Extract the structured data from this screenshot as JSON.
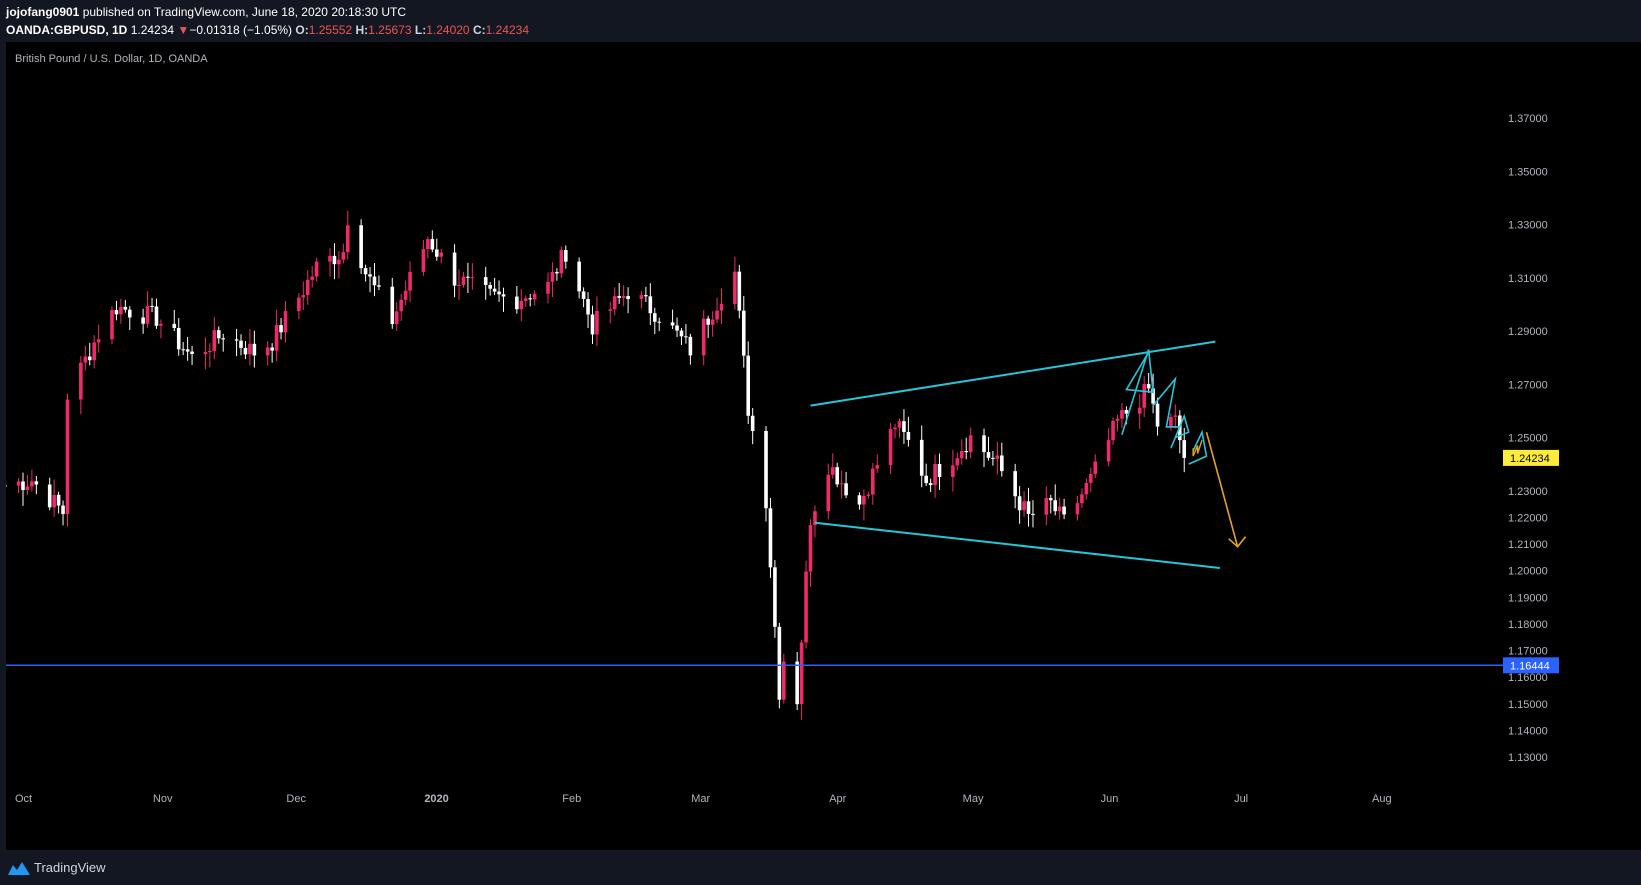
{
  "header": {
    "author": "jojofang0901",
    "published_text": " published on TradingView.com, June 18, 2020 20:18:30 UTC",
    "symbol": "OANDA:GBPUSD, 1D",
    "last": "1.24234",
    "change_arrow": "▼",
    "change": "−0.01318 (−1.05%)",
    "o_label": "O:",
    "o_value": "1.25552",
    "h_label": "H:",
    "h_value": "1.25673",
    "l_label": "L:",
    "l_value": "1.24020",
    "c_label": "C:",
    "c_value": "1.24234"
  },
  "footer": {
    "brand": "TradingView",
    "logo_icon": "tradingview-logo-icon"
  },
  "colors": {
    "up": "#ef2a6a",
    "down": "#ffffff",
    "trendline": "#26c6da",
    "hline": "#2962ff",
    "arrow": "#e6a323",
    "price_badge": "#ffeb3b"
  },
  "chart_data": {
    "type": "candlestick",
    "title": "British Pound / U.S. Dollar, 1D, OANDA",
    "price_axis": {
      "min": 1.125,
      "max": 1.38,
      "ticks": [
        "1.37000",
        "1.35000",
        "1.33000",
        "1.31000",
        "1.29000",
        "1.27000",
        "1.25000",
        "1.23000",
        "1.22000",
        "1.21000",
        "1.20000",
        "1.19000",
        "1.18000",
        "1.17000",
        "1.16000",
        "1.15000",
        "1.14000",
        "1.13000"
      ]
    },
    "time_axis": {
      "labels": [
        {
          "date": "2019-10-01",
          "label": "Oct",
          "bold": false
        },
        {
          "date": "2019-11-01",
          "label": "Nov",
          "bold": false
        },
        {
          "date": "2019-12-01",
          "label": "Dec",
          "bold": false
        },
        {
          "date": "2020-01-01",
          "label": "2020",
          "bold": true
        },
        {
          "date": "2020-02-01",
          "label": "Feb",
          "bold": false
        },
        {
          "date": "2020-03-01",
          "label": "Mar",
          "bold": false
        },
        {
          "date": "2020-04-01",
          "label": "Apr",
          "bold": false
        },
        {
          "date": "2020-05-01",
          "label": "May",
          "bold": false
        },
        {
          "date": "2020-06-01",
          "label": "Jun",
          "bold": false
        },
        {
          "date": "2020-07-01",
          "label": "Jul",
          "bold": false
        },
        {
          "date": "2020-08-01",
          "label": "Aug",
          "bold": false
        }
      ]
    },
    "current_price": {
      "value": 1.24234,
      "label": "1.24234"
    },
    "horizontal_line": {
      "value": 1.16444,
      "label": "1.16444"
    },
    "waypoints": [
      [
        "2019-09-27",
        1.232
      ],
      [
        "2019-10-03",
        1.234
      ],
      [
        "2019-10-10",
        1.222
      ],
      [
        "2019-10-11",
        1.266
      ],
      [
        "2019-10-18",
        1.289
      ],
      [
        "2019-10-22",
        1.299
      ],
      [
        "2019-10-31",
        1.295
      ],
      [
        "2019-11-08",
        1.28
      ],
      [
        "2019-11-15",
        1.289
      ],
      [
        "2019-11-22",
        1.282
      ],
      [
        "2019-11-26",
        1.286
      ],
      [
        "2019-12-06",
        1.314
      ],
      [
        "2019-12-12",
        1.32
      ],
      [
        "2019-12-13",
        1.333
      ],
      [
        "2019-12-17",
        1.312
      ],
      [
        "2019-12-23",
        1.294
      ],
      [
        "2019-12-31",
        1.325
      ],
      [
        "2020-01-06",
        1.31
      ],
      [
        "2020-01-14",
        1.303
      ],
      [
        "2020-01-20",
        1.302
      ],
      [
        "2020-01-27",
        1.307
      ],
      [
        "2020-01-31",
        1.32
      ],
      [
        "2020-02-06",
        1.292
      ],
      [
        "2020-02-14",
        1.305
      ],
      [
        "2020-02-21",
        1.296
      ],
      [
        "2020-02-28",
        1.283
      ],
      [
        "2020-03-06",
        1.304
      ],
      [
        "2020-03-09",
        1.312
      ],
      [
        "2020-03-12",
        1.261
      ],
      [
        "2020-03-16",
        1.227
      ],
      [
        "2020-03-19",
        1.155
      ],
      [
        "2020-03-20",
        1.167
      ],
      [
        "2020-03-23",
        1.152
      ],
      [
        "2020-03-26",
        1.22
      ],
      [
        "2020-03-30",
        1.24
      ],
      [
        "2020-04-06",
        1.225
      ],
      [
        "2020-04-14",
        1.255
      ],
      [
        "2020-04-17",
        1.248
      ],
      [
        "2020-04-21",
        1.234
      ],
      [
        "2020-04-27",
        1.243
      ],
      [
        "2020-05-01",
        1.25
      ],
      [
        "2020-05-07",
        1.24
      ],
      [
        "2020-05-14",
        1.22
      ],
      [
        "2020-05-19",
        1.225
      ],
      [
        "2020-05-22",
        1.218
      ],
      [
        "2020-05-28",
        1.234
      ],
      [
        "2020-06-03",
        1.256
      ],
      [
        "2020-06-10",
        1.268
      ],
      [
        "2020-06-12",
        1.255
      ],
      [
        "2020-06-16",
        1.256
      ],
      [
        "2020-06-18",
        1.242
      ]
    ],
    "drawings": {
      "channel_upper": [
        [
          "2020-03-26",
          1.262
        ],
        [
          "2020-06-25",
          1.286
        ]
      ],
      "channel_lower": [
        [
          "2020-03-27",
          1.218
        ],
        [
          "2020-06-26",
          1.201
        ]
      ],
      "zigzag_1": [
        [
          "2020-06-04",
          1.251
        ],
        [
          "2020-06-10",
          1.283
        ],
        [
          "2020-06-11",
          1.267
        ],
        [
          "2020-06-05",
          1.268
        ],
        [
          "2020-06-10",
          1.282
        ]
      ],
      "zigzag_2": [
        [
          "2020-06-11",
          1.262
        ],
        [
          "2020-06-16",
          1.272
        ],
        [
          "2020-06-14",
          1.254
        ],
        [
          "2020-06-17",
          1.254
        ]
      ],
      "zigzag_3": [
        [
          "2020-06-15",
          1.246
        ],
        [
          "2020-06-18",
          1.258
        ],
        [
          "2020-06-19",
          1.252
        ],
        [
          "2020-06-16",
          1.25
        ]
      ],
      "wedge": [
        [
          "2020-06-19",
          1.24
        ],
        [
          "2020-06-23",
          1.243
        ],
        [
          "2020-06-22",
          1.252
        ],
        [
          "2020-06-20",
          1.245
        ]
      ],
      "projection_arrow": [
        [
          "2020-06-23",
          1.252
        ],
        [
          "2020-06-30",
          1.209
        ]
      ],
      "handwriting": [
        [
          "2020-06-20",
          1.246
        ],
        [
          "2020-06-20",
          1.243
        ],
        [
          "2020-06-21",
          1.247
        ],
        [
          "2020-06-21",
          1.244
        ],
        [
          "2020-06-22",
          1.249
        ]
      ]
    }
  }
}
